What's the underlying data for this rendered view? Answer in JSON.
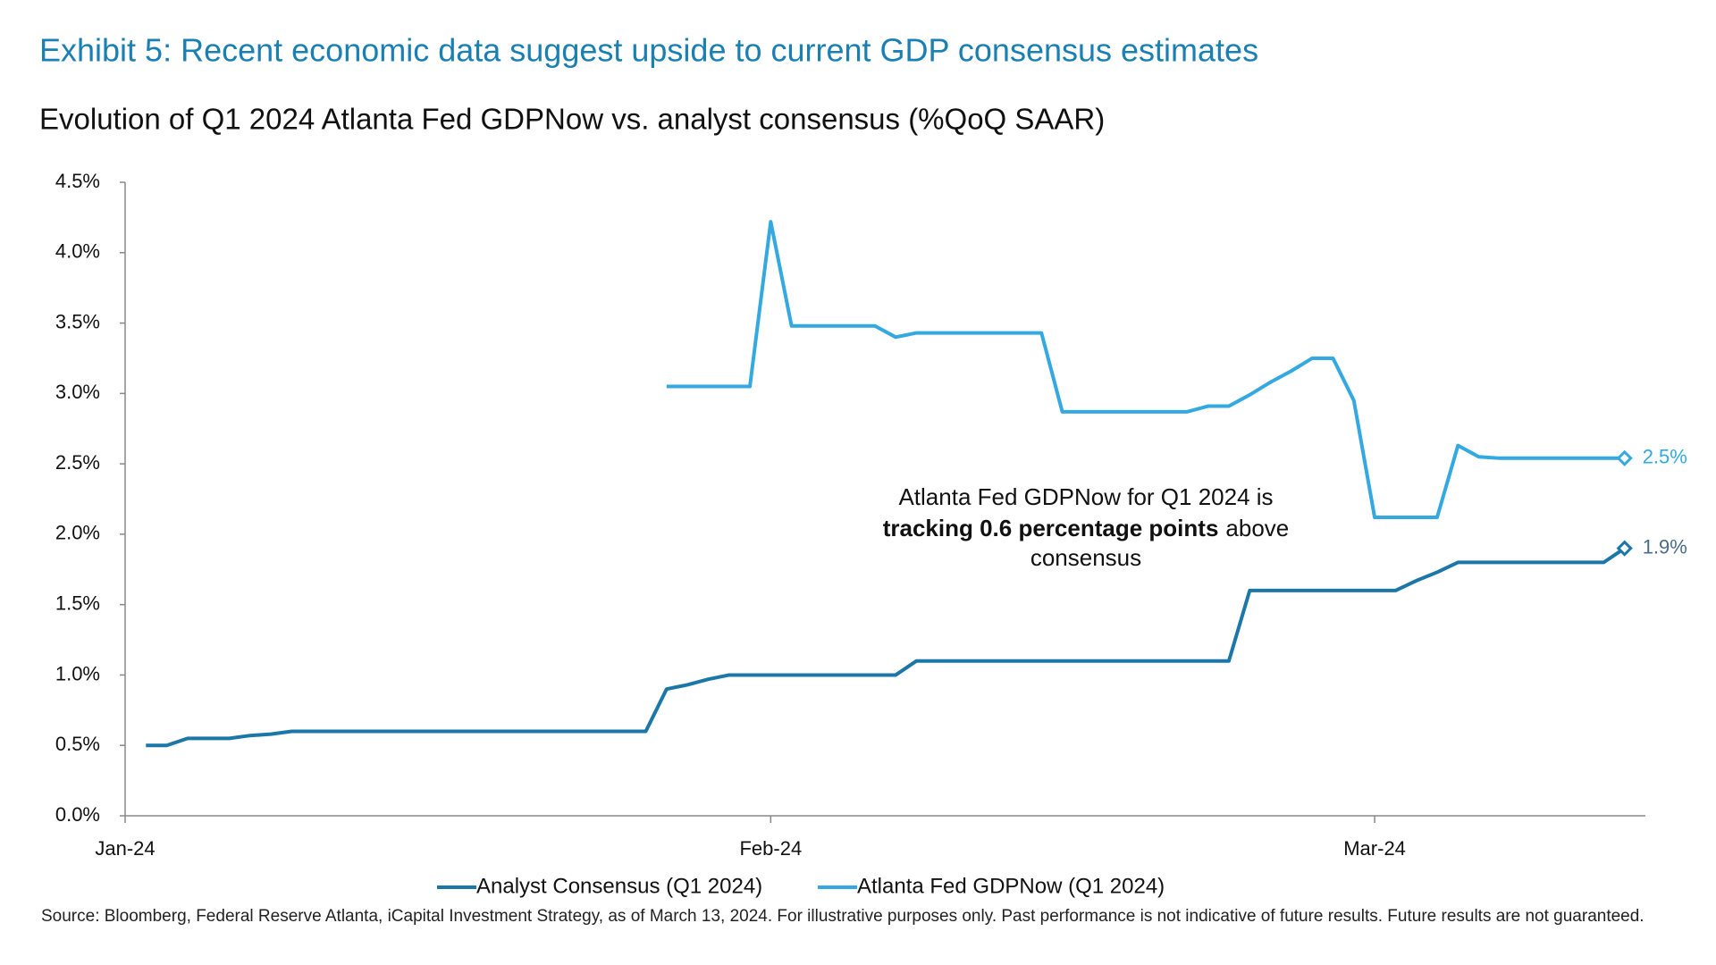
{
  "chart_data": {
    "type": "line",
    "title": "Exhibit 5: Recent economic data suggest upside to current GDP consensus estimates",
    "subtitle": "Evolution of Q1 2024 Atlanta Fed GDPNow vs. analyst consensus (%QoQ SAAR)",
    "x": [
      2,
      3,
      4,
      5,
      6,
      7,
      8,
      9,
      10,
      11,
      12,
      13,
      14,
      15,
      16,
      17,
      18,
      19,
      20,
      21,
      22,
      23,
      24,
      25,
      26,
      27,
      28,
      29,
      30,
      31,
      32,
      33,
      34,
      35,
      36,
      37,
      38,
      39,
      40,
      41,
      42,
      43,
      44,
      45,
      46,
      47,
      48,
      49,
      50,
      51,
      52,
      53,
      54,
      55,
      56,
      57,
      58,
      59,
      60,
      61,
      62,
      63,
      64,
      65,
      66,
      67,
      68,
      69,
      70,
      71,
      72,
      73
    ],
    "xlim": [
      1,
      74
    ],
    "xticks": [
      {
        "value": 1,
        "label": "Jan-24"
      },
      {
        "value": 32,
        "label": "Feb-24"
      },
      {
        "value": 61,
        "label": "Mar-24"
      }
    ],
    "ylim": [
      0,
      4.5
    ],
    "yticks": [
      {
        "value": 0,
        "label": "0.0%"
      },
      {
        "value": 0.5,
        "label": "0.5%"
      },
      {
        "value": 1,
        "label": "1.0%"
      },
      {
        "value": 1.5,
        "label": "1.5%"
      },
      {
        "value": 2,
        "label": "2.0%"
      },
      {
        "value": 2.5,
        "label": "2.5%"
      },
      {
        "value": 3,
        "label": "3.0%"
      },
      {
        "value": 3.5,
        "label": "3.5%"
      },
      {
        "value": 4,
        "label": "4.0%"
      },
      {
        "value": 4.5,
        "label": "4.5%"
      }
    ],
    "grid": false,
    "legend": "bottom",
    "series": [
      {
        "name": "Analyst Consensus (Q1 2024)",
        "color": "#1b77a8",
        "values": [
          0.5,
          0.5,
          0.55,
          0.55,
          0.55,
          0.57,
          0.58,
          0.6,
          0.6,
          0.6,
          0.6,
          0.6,
          0.6,
          0.6,
          0.6,
          0.6,
          0.6,
          0.6,
          0.6,
          0.6,
          0.6,
          0.6,
          0.6,
          0.6,
          0.6,
          0.9,
          0.93,
          0.97,
          1.0,
          1.0,
          1.0,
          1.0,
          1.0,
          1.0,
          1.0,
          1.0,
          1.0,
          1.1,
          1.1,
          1.1,
          1.1,
          1.1,
          1.1,
          1.1,
          1.1,
          1.1,
          1.1,
          1.1,
          1.1,
          1.1,
          1.1,
          1.1,
          1.1,
          1.6,
          1.6,
          1.6,
          1.6,
          1.6,
          1.6,
          1.6,
          1.6,
          1.67,
          1.73,
          1.8,
          1.8,
          1.8,
          1.8,
          1.8,
          1.8,
          1.8,
          1.8,
          1.9
        ],
        "value_labels": [
          null,
          null,
          null,
          null,
          null,
          null,
          null,
          null,
          null,
          null,
          null,
          null,
          null,
          null,
          null,
          null,
          null,
          null,
          null,
          null,
          null,
          null,
          null,
          null,
          null,
          null,
          null,
          null,
          null,
          null,
          null,
          null,
          null,
          null,
          null,
          null,
          null,
          null,
          null,
          null,
          null,
          null,
          null,
          null,
          null,
          null,
          null,
          null,
          null,
          null,
          null,
          null,
          null,
          null,
          null,
          null,
          null,
          null,
          null,
          null,
          null,
          null,
          null,
          null,
          null,
          null,
          null,
          null,
          null,
          null,
          null,
          "1.9%"
        ]
      },
      {
        "name": "Atlanta Fed GDPNow (Q1 2024)",
        "color": "#34a9e1",
        "values": [
          null,
          null,
          null,
          null,
          null,
          null,
          null,
          null,
          null,
          null,
          null,
          null,
          null,
          null,
          null,
          null,
          null,
          null,
          null,
          null,
          null,
          null,
          null,
          null,
          null,
          3.05,
          3.05,
          3.05,
          3.05,
          3.05,
          4.22,
          3.48,
          3.48,
          3.48,
          3.48,
          3.48,
          3.4,
          3.43,
          3.43,
          3.43,
          3.43,
          3.43,
          3.43,
          3.43,
          2.87,
          2.87,
          2.87,
          2.87,
          2.87,
          2.87,
          2.87,
          2.91,
          2.91,
          2.99,
          3.08,
          3.16,
          3.25,
          3.25,
          2.95,
          2.12,
          2.12,
          2.12,
          2.12,
          2.63,
          2.55,
          2.54,
          2.54,
          2.54,
          2.54,
          2.54,
          2.54,
          2.54
        ],
        "value_labels": [
          null,
          null,
          null,
          null,
          null,
          null,
          null,
          null,
          null,
          null,
          null,
          null,
          null,
          null,
          null,
          null,
          null,
          null,
          null,
          null,
          null,
          null,
          null,
          null,
          null,
          null,
          null,
          null,
          null,
          null,
          null,
          null,
          null,
          null,
          null,
          null,
          null,
          null,
          null,
          null,
          null,
          null,
          null,
          null,
          null,
          null,
          null,
          null,
          null,
          null,
          null,
          null,
          null,
          null,
          null,
          null,
          null,
          null,
          null,
          null,
          null,
          null,
          null,
          null,
          null,
          null,
          null,
          null,
          null,
          null,
          null,
          "2.5%"
        ]
      }
    ],
    "annotation": [
      "Atlanta Fed GDPNow for Q1 2024 is",
      "tracking 0.6 percentage points",
      "above",
      "consensus"
    ],
    "source": "Source: Bloomberg, Federal Reserve Atlanta, iCapital Investment Strategy, as of March 13, 2024. For illustrative purposes only. Past performance is not indicative of future results. Future results are not guaranteed."
  }
}
